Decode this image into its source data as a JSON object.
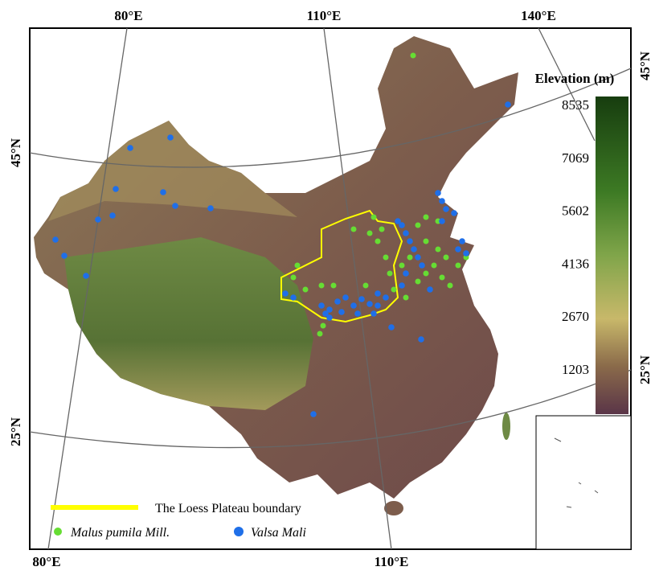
{
  "map": {
    "graticule": {
      "top": [
        "80°E",
        "110°E",
        "140°E"
      ],
      "bottom": [
        "80°E",
        "110°E"
      ],
      "left": [
        "45°N",
        "25°N"
      ],
      "right": [
        "45°N",
        "25°N"
      ]
    },
    "colorbar": {
      "title": "Elevation (m)",
      "ticks": [
        8535,
        7069,
        5602,
        4136,
        2670,
        1203
      ]
    },
    "legend": {
      "boundary": "The Loess Plateau boundary",
      "species": [
        "Malus pumila Mill.",
        "Valsa Mali"
      ]
    }
  }
}
